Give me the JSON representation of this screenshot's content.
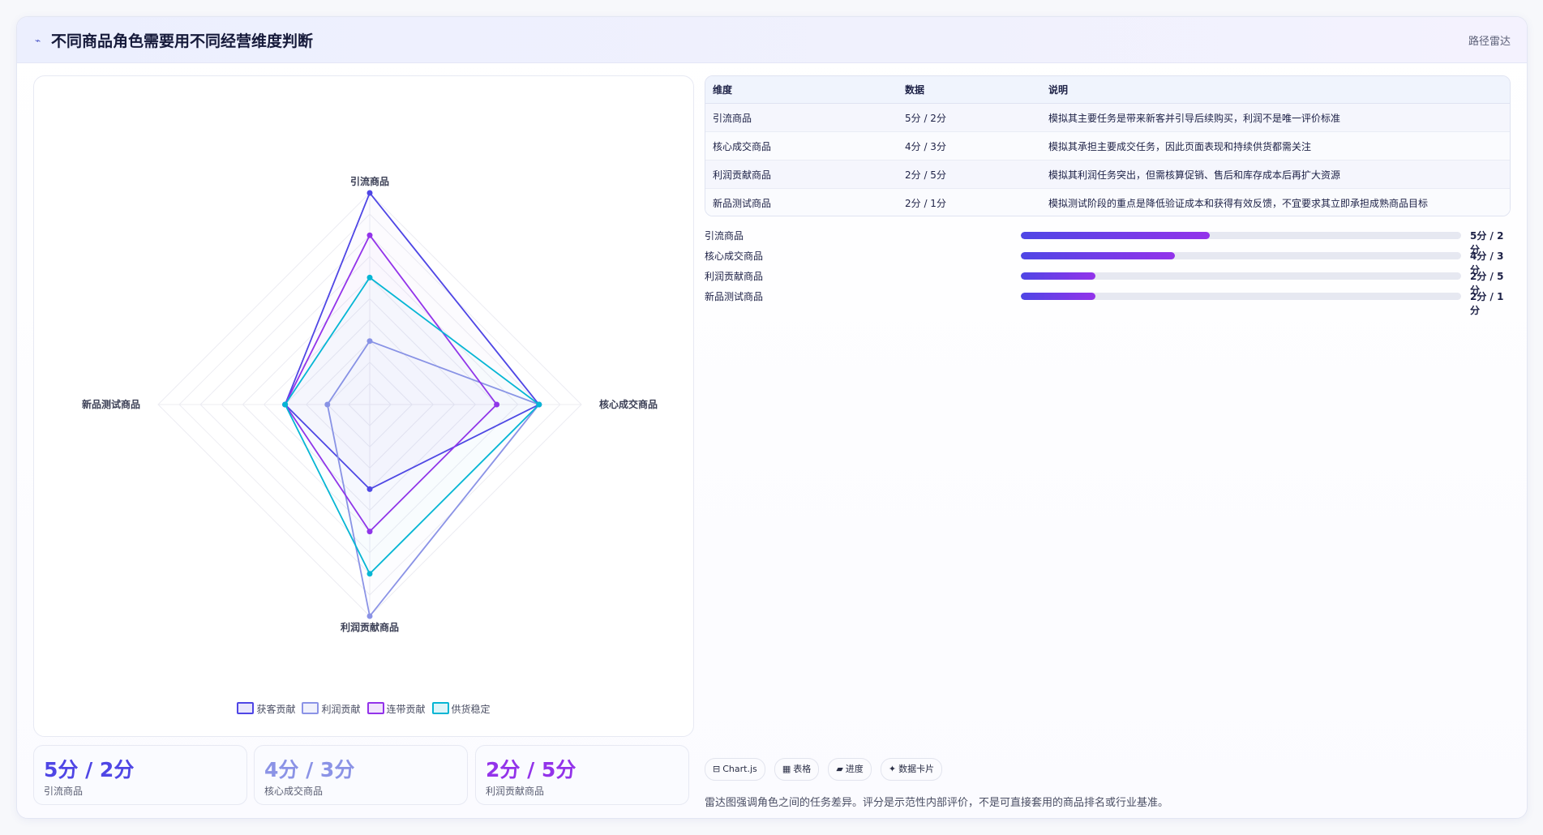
{
  "header": {
    "icon": "trend-line-icon",
    "title": "不同商品角色需要用不同经营维度判断",
    "tag": "路径雷达"
  },
  "chart_data": {
    "type": "radar",
    "axes": [
      "引流商品",
      "核心成交商品",
      "利润贡献商品",
      "新品测试商品"
    ],
    "range": [
      0,
      5
    ],
    "grid_levels": 10,
    "legend_position": "bottom",
    "series": [
      {
        "name": "获客贡献",
        "color": "#4f46e5",
        "values": [
          5,
          4,
          2,
          2
        ]
      },
      {
        "name": "利润贡献",
        "color": "#8b93e6",
        "values": [
          1.5,
          4,
          5,
          1
        ]
      },
      {
        "name": "连带贡献",
        "color": "#9333ea",
        "values": [
          4,
          3,
          3,
          2
        ]
      },
      {
        "name": "供货稳定",
        "color": "#06b6d4",
        "values": [
          3,
          4,
          4,
          2
        ]
      }
    ]
  },
  "stats": [
    {
      "value": "5分 / 2分",
      "label": "引流商品",
      "color": "#4f46e5"
    },
    {
      "value": "4分 / 3分",
      "label": "核心成交商品",
      "color": "#8b93e6"
    },
    {
      "value": "2分 / 5分",
      "label": "利润贡献商品",
      "color": "#9333ea"
    }
  ],
  "table": {
    "headers": [
      "维度",
      "数据",
      "说明"
    ],
    "rows": [
      [
        "引流商品",
        "5分 / 2分",
        "模拟其主要任务是带来新客并引导后续购买，利润不是唯一评价标准"
      ],
      [
        "核心成交商品",
        "4分 / 3分",
        "模拟其承担主要成交任务，因此页面表现和持续供货都需关注"
      ],
      [
        "利润贡献商品",
        "2分 / 5分",
        "模拟其利润任务突出，但需核算促销、售后和库存成本后再扩大资源"
      ],
      [
        "新品测试商品",
        "2分 / 1分",
        "模拟测试阶段的重点是降低验证成本和获得有效反馈，不宜要求其立即承担成熟商品目标"
      ]
    ]
  },
  "progress": [
    {
      "label": "引流商品",
      "value": "5分 / 2分",
      "fraction": 0.43
    },
    {
      "label": "核心成交商品",
      "value": "4分 / 3分",
      "fraction": 0.35
    },
    {
      "label": "利润贡献商品",
      "value": "2分 / 5分",
      "fraction": 0.17
    },
    {
      "label": "新品测试商品",
      "value": "2分 / 1分",
      "fraction": 0.17
    }
  ],
  "chips": [
    {
      "icon": "⊟",
      "label": "Chart.js"
    },
    {
      "icon": "▦",
      "label": "表格"
    },
    {
      "icon": "▰",
      "label": "进度"
    },
    {
      "icon": "✦",
      "label": "数据卡片"
    }
  ],
  "footnote": "雷达图强调角色之间的任务差异。评分是示范性内部评价，不是可直接套用的商品排名或行业基准。"
}
